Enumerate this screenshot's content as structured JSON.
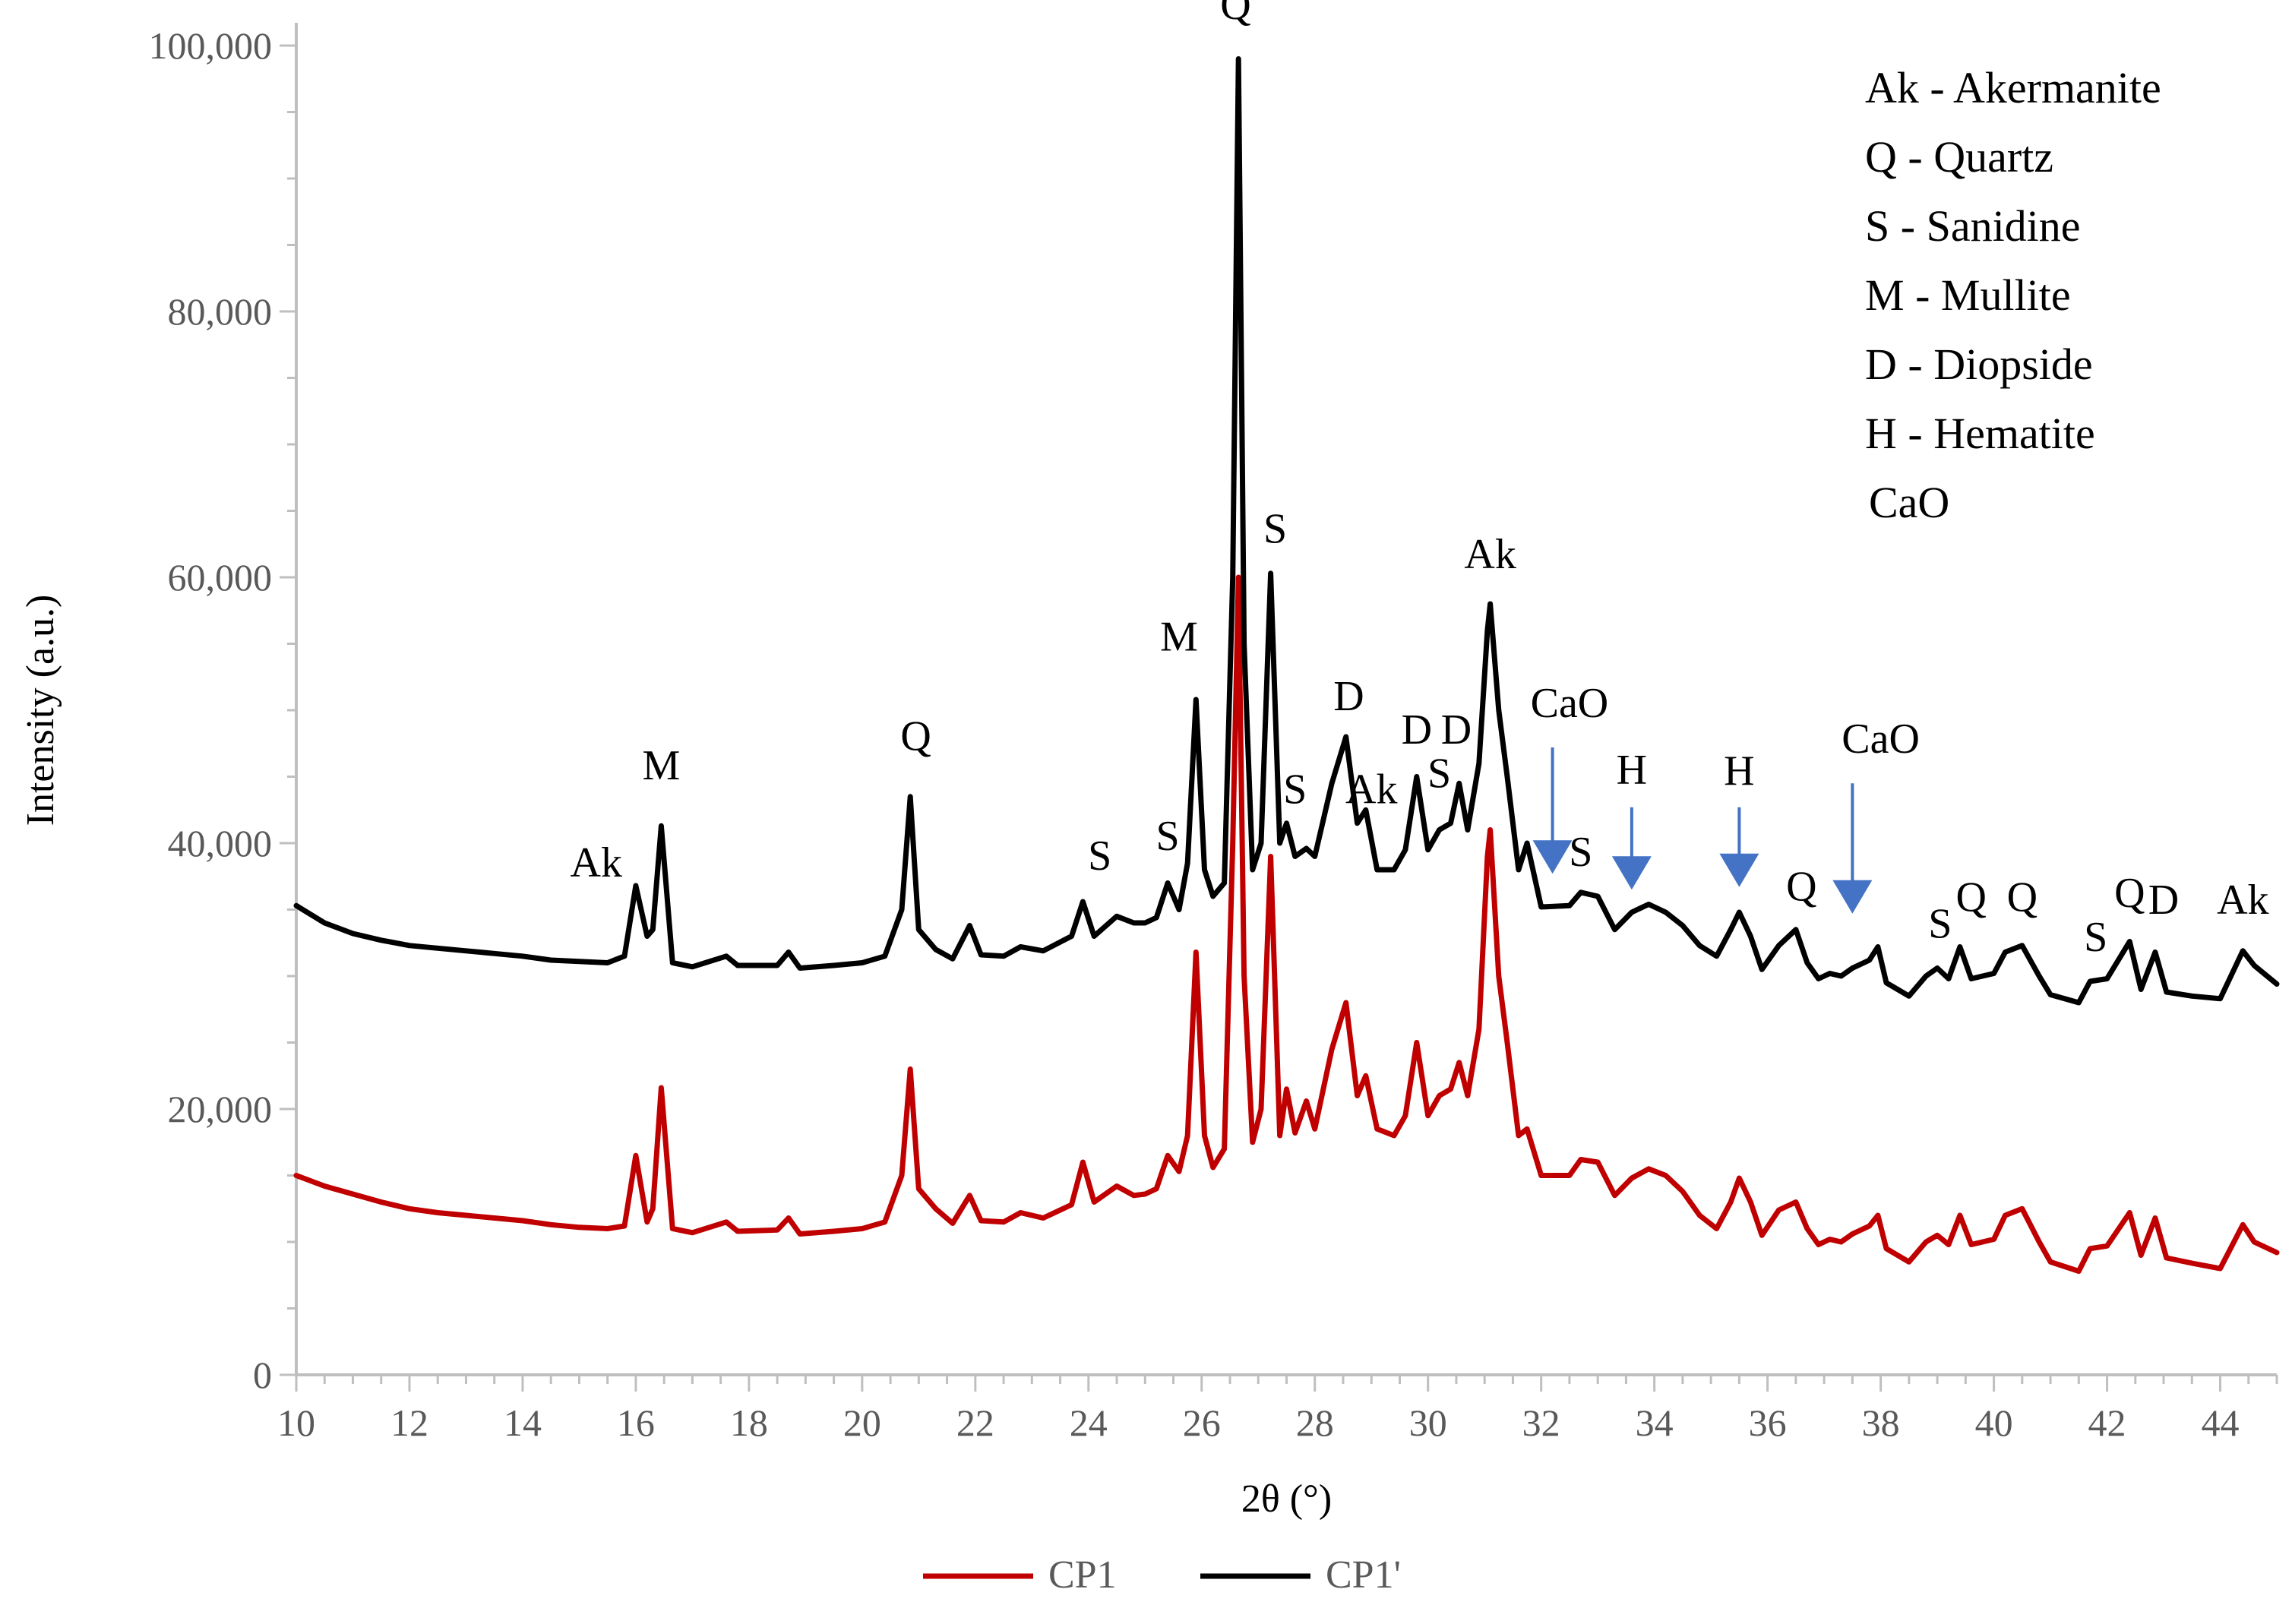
{
  "colors": {
    "cp1": "#C00000",
    "cp1p": "#000000",
    "arrow": "#4472C4",
    "axis": "#BFBFBF"
  },
  "chart_data": {
    "type": "line",
    "title": "",
    "xlabel": "2θ (°)",
    "ylabel": "Intensity (a.u.)",
    "xlim": [
      10,
      45
    ],
    "ylim": [
      0,
      100000
    ],
    "x_ticks": [
      10,
      12,
      14,
      16,
      18,
      20,
      22,
      24,
      26,
      28,
      30,
      32,
      34,
      36,
      38,
      40,
      42,
      44
    ],
    "y_ticks": [
      0,
      20000,
      40000,
      60000,
      80000,
      100000
    ],
    "x_tick_labels": [
      "10",
      "12",
      "14",
      "16",
      "18",
      "20",
      "22",
      "24",
      "26",
      "28",
      "30",
      "32",
      "34",
      "36",
      "38",
      "40",
      "42",
      "44"
    ],
    "y_tick_labels": [
      "0",
      "20,000",
      "40,000",
      "60,000",
      "80,000",
      "100,000"
    ],
    "grid": false,
    "legend_position": "bottom",
    "series": [
      {
        "name": "CP1",
        "color": "#C00000",
        "points": [
          [
            10,
            15000
          ],
          [
            10.5,
            14200
          ],
          [
            11,
            13600
          ],
          [
            11.5,
            13000
          ],
          [
            12,
            12500
          ],
          [
            12.5,
            12200
          ],
          [
            13,
            12000
          ],
          [
            13.5,
            11800
          ],
          [
            14,
            11600
          ],
          [
            14.5,
            11300
          ],
          [
            15,
            11100
          ],
          [
            15.5,
            11000
          ],
          [
            15.8,
            11200
          ],
          [
            16,
            16500
          ],
          [
            16.2,
            11500
          ],
          [
            16.3,
            12500
          ],
          [
            16.45,
            21600
          ],
          [
            16.65,
            11000
          ],
          [
            17,
            10700
          ],
          [
            17.6,
            11500
          ],
          [
            17.8,
            10800
          ],
          [
            18.5,
            10900
          ],
          [
            18.7,
            11800
          ],
          [
            18.9,
            10600
          ],
          [
            19.5,
            10800
          ],
          [
            20,
            11000
          ],
          [
            20.4,
            11500
          ],
          [
            20.7,
            15000
          ],
          [
            20.85,
            23000
          ],
          [
            21,
            14000
          ],
          [
            21.3,
            12500
          ],
          [
            21.6,
            11400
          ],
          [
            21.9,
            13500
          ],
          [
            22.1,
            11600
          ],
          [
            22.5,
            11500
          ],
          [
            22.8,
            12200
          ],
          [
            23.2,
            11800
          ],
          [
            23.7,
            12800
          ],
          [
            23.9,
            16000
          ],
          [
            24.1,
            13000
          ],
          [
            24.5,
            14200
          ],
          [
            24.8,
            13500
          ],
          [
            25,
            13600
          ],
          [
            25.2,
            14000
          ],
          [
            25.4,
            16500
          ],
          [
            25.6,
            15300
          ],
          [
            25.75,
            18000
          ],
          [
            25.9,
            31800
          ],
          [
            26.05,
            18000
          ],
          [
            26.2,
            15600
          ],
          [
            26.4,
            17000
          ],
          [
            26.55,
            40000
          ],
          [
            26.65,
            60000
          ],
          [
            26.75,
            30000
          ],
          [
            26.9,
            17500
          ],
          [
            27.05,
            20000
          ],
          [
            27.22,
            39000
          ],
          [
            27.38,
            18000
          ],
          [
            27.5,
            21500
          ],
          [
            27.65,
            18200
          ],
          [
            27.85,
            20600
          ],
          [
            28,
            18500
          ],
          [
            28.3,
            24500
          ],
          [
            28.55,
            28000
          ],
          [
            28.75,
            21000
          ],
          [
            28.9,
            22500
          ],
          [
            29.1,
            18500
          ],
          [
            29.4,
            18000
          ],
          [
            29.6,
            19500
          ],
          [
            29.8,
            25000
          ],
          [
            30,
            19500
          ],
          [
            30.2,
            21000
          ],
          [
            30.4,
            21500
          ],
          [
            30.55,
            23500
          ],
          [
            30.7,
            21000
          ],
          [
            30.9,
            26000
          ],
          [
            31.05,
            39000
          ],
          [
            31.1,
            41000
          ],
          [
            31.25,
            30000
          ],
          [
            31.4,
            25000
          ],
          [
            31.6,
            18000
          ],
          [
            31.75,
            18500
          ],
          [
            32,
            15000
          ],
          [
            32.5,
            15000
          ],
          [
            32.7,
            16200
          ],
          [
            33,
            16000
          ],
          [
            33.3,
            13500
          ],
          [
            33.6,
            14800
          ],
          [
            33.9,
            15500
          ],
          [
            34.2,
            15000
          ],
          [
            34.5,
            13800
          ],
          [
            34.8,
            12000
          ],
          [
            35.1,
            11000
          ],
          [
            35.35,
            13000
          ],
          [
            35.5,
            14800
          ],
          [
            35.7,
            13000
          ],
          [
            35.9,
            10500
          ],
          [
            36.2,
            12400
          ],
          [
            36.5,
            13000
          ],
          [
            36.7,
            11000
          ],
          [
            36.9,
            9800
          ],
          [
            37.1,
            10200
          ],
          [
            37.3,
            10000
          ],
          [
            37.5,
            10600
          ],
          [
            37.8,
            11200
          ],
          [
            37.95,
            12000
          ],
          [
            38.1,
            9500
          ],
          [
            38.5,
            8500
          ],
          [
            38.8,
            10000
          ],
          [
            39,
            10500
          ],
          [
            39.2,
            9800
          ],
          [
            39.4,
            12000
          ],
          [
            39.6,
            9800
          ],
          [
            40,
            10200
          ],
          [
            40.2,
            12000
          ],
          [
            40.5,
            12500
          ],
          [
            40.8,
            10000
          ],
          [
            41,
            8500
          ],
          [
            41.5,
            7800
          ],
          [
            41.7,
            9500
          ],
          [
            42,
            9700
          ],
          [
            42.4,
            12200
          ],
          [
            42.6,
            9000
          ],
          [
            42.85,
            11800
          ],
          [
            43.05,
            8800
          ],
          [
            43.5,
            8400
          ],
          [
            44,
            8000
          ],
          [
            44.4,
            11300
          ],
          [
            44.6,
            10000
          ],
          [
            45,
            9200
          ]
        ]
      },
      {
        "name": "CP1'",
        "color": "#000000",
        "points": [
          [
            10,
            35300
          ],
          [
            10.5,
            34000
          ],
          [
            11,
            33200
          ],
          [
            11.5,
            32700
          ],
          [
            12,
            32300
          ],
          [
            12.5,
            32100
          ],
          [
            13,
            31900
          ],
          [
            13.5,
            31700
          ],
          [
            14,
            31500
          ],
          [
            14.5,
            31200
          ],
          [
            15,
            31100
          ],
          [
            15.5,
            31000
          ],
          [
            15.8,
            31500
          ],
          [
            16,
            36800
          ],
          [
            16.2,
            33000
          ],
          [
            16.3,
            33500
          ],
          [
            16.45,
            41300
          ],
          [
            16.65,
            31000
          ],
          [
            17,
            30700
          ],
          [
            17.6,
            31500
          ],
          [
            17.8,
            30800
          ],
          [
            18.5,
            30800
          ],
          [
            18.7,
            31800
          ],
          [
            18.9,
            30600
          ],
          [
            19.5,
            30800
          ],
          [
            20,
            31000
          ],
          [
            20.4,
            31500
          ],
          [
            20.7,
            35000
          ],
          [
            20.85,
            43500
          ],
          [
            21,
            33500
          ],
          [
            21.3,
            32000
          ],
          [
            21.6,
            31300
          ],
          [
            21.9,
            33800
          ],
          [
            22.1,
            31600
          ],
          [
            22.5,
            31500
          ],
          [
            22.8,
            32200
          ],
          [
            23.2,
            31900
          ],
          [
            23.7,
            33000
          ],
          [
            23.9,
            35600
          ],
          [
            24.1,
            33000
          ],
          [
            24.5,
            34500
          ],
          [
            24.8,
            34000
          ],
          [
            25,
            34000
          ],
          [
            25.2,
            34400
          ],
          [
            25.4,
            37000
          ],
          [
            25.6,
            35000
          ],
          [
            25.75,
            38500
          ],
          [
            25.9,
            50800
          ],
          [
            26.05,
            38000
          ],
          [
            26.2,
            36000
          ],
          [
            26.4,
            37000
          ],
          [
            26.55,
            60000
          ],
          [
            26.65,
            99000
          ],
          [
            26.75,
            55000
          ],
          [
            26.9,
            38000
          ],
          [
            27.05,
            40000
          ],
          [
            27.22,
            60300
          ],
          [
            27.38,
            40000
          ],
          [
            27.5,
            41500
          ],
          [
            27.65,
            39000
          ],
          [
            27.85,
            39600
          ],
          [
            28,
            39000
          ],
          [
            28.3,
            44500
          ],
          [
            28.55,
            48000
          ],
          [
            28.75,
            41500
          ],
          [
            28.9,
            42500
          ],
          [
            29.1,
            38000
          ],
          [
            29.4,
            38000
          ],
          [
            29.6,
            39500
          ],
          [
            29.8,
            45000
          ],
          [
            30,
            39500
          ],
          [
            30.2,
            41000
          ],
          [
            30.4,
            41500
          ],
          [
            30.55,
            44500
          ],
          [
            30.7,
            41000
          ],
          [
            30.9,
            46000
          ],
          [
            31.05,
            56000
          ],
          [
            31.1,
            58000
          ],
          [
            31.25,
            50000
          ],
          [
            31.4,
            45000
          ],
          [
            31.6,
            38000
          ],
          [
            31.75,
            40000
          ],
          [
            32,
            35200
          ],
          [
            32.5,
            35300
          ],
          [
            32.7,
            36300
          ],
          [
            33,
            36000
          ],
          [
            33.3,
            33500
          ],
          [
            33.6,
            34800
          ],
          [
            33.9,
            35400
          ],
          [
            34.2,
            34800
          ],
          [
            34.5,
            33800
          ],
          [
            34.8,
            32300
          ],
          [
            35.1,
            31500
          ],
          [
            35.35,
            33500
          ],
          [
            35.5,
            34800
          ],
          [
            35.7,
            33000
          ],
          [
            35.9,
            30500
          ],
          [
            36.2,
            32300
          ],
          [
            36.5,
            33500
          ],
          [
            36.7,
            31000
          ],
          [
            36.9,
            29800
          ],
          [
            37.1,
            30200
          ],
          [
            37.3,
            30000
          ],
          [
            37.5,
            30600
          ],
          [
            37.8,
            31200
          ],
          [
            37.95,
            32200
          ],
          [
            38.1,
            29500
          ],
          [
            38.5,
            28500
          ],
          [
            38.8,
            30000
          ],
          [
            39,
            30600
          ],
          [
            39.2,
            29800
          ],
          [
            39.4,
            32200
          ],
          [
            39.6,
            29800
          ],
          [
            40,
            30200
          ],
          [
            40.2,
            31800
          ],
          [
            40.5,
            32300
          ],
          [
            40.8,
            30000
          ],
          [
            41,
            28600
          ],
          [
            41.5,
            28000
          ],
          [
            41.7,
            29600
          ],
          [
            42,
            29800
          ],
          [
            42.4,
            32600
          ],
          [
            42.6,
            29000
          ],
          [
            42.85,
            31800
          ],
          [
            43.05,
            28800
          ],
          [
            43.5,
            28500
          ],
          [
            44,
            28300
          ],
          [
            44.4,
            31900
          ],
          [
            44.6,
            30800
          ],
          [
            45,
            29400
          ]
        ]
      }
    ],
    "peak_labels": [
      {
        "text": "Ak",
        "x": 15.3,
        "y": 37500
      },
      {
        "text": "M",
        "x": 16.45,
        "y": 44800
      },
      {
        "text": "Q",
        "x": 20.95,
        "y": 47000
      },
      {
        "text": "S",
        "x": 24.2,
        "y": 38000
      },
      {
        "text": "S",
        "x": 25.4,
        "y": 39500
      },
      {
        "text": "M",
        "x": 25.6,
        "y": 54500
      },
      {
        "text": "Q",
        "x": 26.6,
        "y": 102000
      },
      {
        "text": "S",
        "x": 27.3,
        "y": 62600
      },
      {
        "text": "S",
        "x": 27.65,
        "y": 43000
      },
      {
        "text": "D",
        "x": 28.6,
        "y": 50000
      },
      {
        "text": "Ak",
        "x": 29.0,
        "y": 43000
      },
      {
        "text": "D",
        "x": 29.8,
        "y": 47500
      },
      {
        "text": "D",
        "x": 30.5,
        "y": 47500
      },
      {
        "text": "S",
        "x": 30.2,
        "y": 44200
      },
      {
        "text": "Ak",
        "x": 31.1,
        "y": 60700
      },
      {
        "text": "CaO",
        "x": 32.5,
        "y": 49500
      },
      {
        "text": "S",
        "x": 32.7,
        "y": 38300
      },
      {
        "text": "H",
        "x": 33.6,
        "y": 44500
      },
      {
        "text": "H",
        "x": 35.5,
        "y": 44400
      },
      {
        "text": "CaO",
        "x": 38.0,
        "y": 46800
      },
      {
        "text": "Q",
        "x": 36.6,
        "y": 35700
      },
      {
        "text": "S",
        "x": 39.05,
        "y": 32900
      },
      {
        "text": "Q",
        "x": 39.6,
        "y": 34900
      },
      {
        "text": "Q",
        "x": 40.5,
        "y": 34900
      },
      {
        "text": "S",
        "x": 41.8,
        "y": 31900
      },
      {
        "text": "Q",
        "x": 42.4,
        "y": 35200
      },
      {
        "text": "D",
        "x": 43.0,
        "y": 34700
      },
      {
        "text": "Ak",
        "x": 44.4,
        "y": 34700
      }
    ],
    "arrows": [
      {
        "x_start": 32.2,
        "y_start": 47200,
        "x_end": 32.2,
        "y_end": 37700
      },
      {
        "x_start": 33.6,
        "y_start": 42700,
        "x_end": 33.6,
        "y_end": 36500
      },
      {
        "x_start": 35.5,
        "y_start": 42700,
        "x_end": 35.5,
        "y_end": 36700
      },
      {
        "x_start": 37.5,
        "y_start": 44500,
        "x_end": 37.5,
        "y_end": 34700
      }
    ],
    "phase_legend": [
      "Ak - Akermanite",
      "Q - Quartz",
      "S - Sanidine",
      "M - Mullite",
      "D - Diopside",
      "H - Hematite",
      "CaO"
    ]
  }
}
